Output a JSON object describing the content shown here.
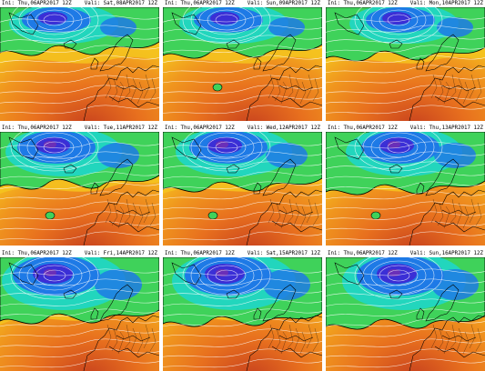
{
  "panels": [
    {
      "ini": "Ini: Thu,06APR2017 12Z",
      "valid": "Vali: Sat,08APR2017 12Z"
    },
    {
      "ini": "Ini: Thu,06APR2017 12Z",
      "valid": "Vali: Sun,09APR2017 12Z"
    },
    {
      "ini": "Ini: Thu,06APR2017 12Z",
      "valid": "Vali: Mon,10APR2017 12Z"
    },
    {
      "ini": "Ini: Thu,06APR2017 12Z",
      "valid": "Vali: Tue,11APR2017 12Z"
    },
    {
      "ini": "Ini: Thu,06APR2017 12Z",
      "valid": "Vali: Wed,12APR2017 12Z"
    },
    {
      "ini": "Ini: Thu,06APR2017 12Z",
      "valid": "Vali: Thu,13APR2017 12Z"
    },
    {
      "ini": "Ini: Thu,06APR2017 12Z",
      "valid": "Vali: Fri,14APR2017 12Z"
    },
    {
      "ini": "Ini: Thu,06APR2017 12Z",
      "valid": "Vali: Sat,15APR2017 12Z"
    },
    {
      "ini": "Ini: Thu,06APR2017 12Z",
      "valid": "Vali: Sun,16APR2017 12Z"
    }
  ],
  "colors": {
    "warm_core": "#c8421e",
    "warm": "#e8701e",
    "orange": "#f0961e",
    "yellow": "#f5c41e",
    "green": "#3fd25a",
    "cyan": "#1fd6c8",
    "blue": "#1e7ae6",
    "deep_blue": "#3b2fd6",
    "violet": "#6a2fb8",
    "contour": "#ffffff",
    "coast": "#000000"
  }
}
